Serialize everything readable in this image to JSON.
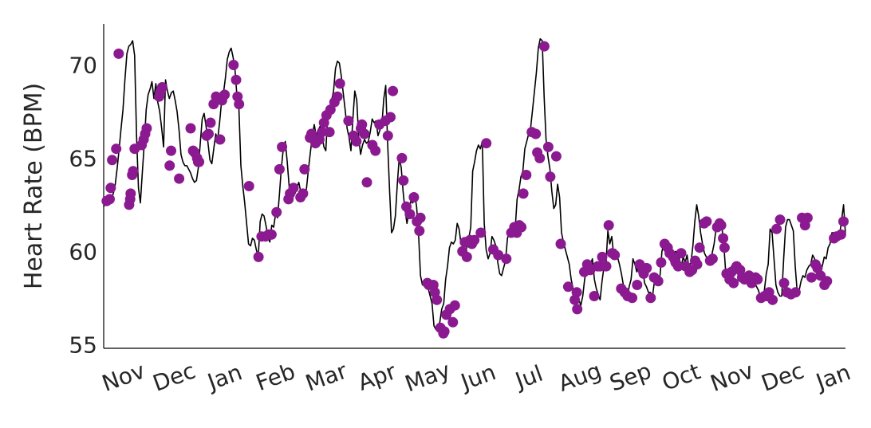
{
  "chart_data": {
    "type": "line",
    "title": "",
    "xlabel": "",
    "ylabel": "Heart Rate (BPM)",
    "ylim": [
      54.8,
      72.2
    ],
    "yticks": [
      55,
      60,
      65,
      70
    ],
    "xticks": [
      "Nov",
      "Dec",
      "Jan",
      "Feb",
      "Mar",
      "Apr",
      "May",
      "Jun",
      "Jul",
      "Aug",
      "Sep",
      "Oct",
      "Nov",
      "Dec",
      "Jan"
    ],
    "grid": false,
    "legend": "none",
    "colors": {
      "line": "#000000",
      "markers": "#8B1A91",
      "axis": "#000000",
      "text": "#262626"
    },
    "series": [
      {
        "type": "line",
        "values": [
          62.4,
          62.6,
          62.5,
          62.8,
          62.9,
          63.1,
          63.6,
          64.5,
          65.5,
          66.6,
          67.6,
          69.2,
          70.6,
          71.0,
          71.1,
          71.3,
          70.5,
          66.2,
          63.4,
          62.6,
          64.2,
          65.8,
          67.6,
          68.4,
          68.7,
          69.1,
          68.2,
          69.0,
          68.0,
          67.5,
          66.6,
          65.6,
          69.2,
          68.6,
          68.2,
          68.5,
          68.6,
          68.1,
          67.5,
          66.5,
          65.2,
          64.8,
          64.6,
          64.6,
          64.4,
          64.2,
          63.9,
          63.7,
          63.8,
          64.5,
          65.8,
          67.1,
          67.4,
          66.7,
          65.8,
          64.9,
          64.7,
          65.5,
          66.3,
          66.0,
          66.9,
          68.0,
          68.5,
          69.3,
          70.3,
          70.7,
          70.9,
          70.4,
          69.7,
          68.3,
          67.7,
          64.6,
          63.5,
          62.6,
          61.5,
          60.4,
          60.3,
          60.7,
          60.6,
          60.1,
          59.7,
          61.6,
          62.0,
          61.9,
          61.4,
          60.8,
          60.5,
          61.4,
          61.3,
          62.0,
          61.8,
          63.1,
          64.5,
          65.5,
          65.9,
          64.8,
          63.5,
          63.0,
          62.9,
          63.1,
          63.4,
          63.7,
          63.2,
          63.0,
          62.9,
          63.4,
          64.4,
          65.3,
          66.2,
          66.8,
          66.2,
          66.5,
          66.7,
          66.3,
          65.6,
          65.4,
          67.4,
          67.4,
          68.1,
          68.6,
          69.8,
          70.2,
          70.1,
          69.4,
          68.5,
          67.6,
          66.6,
          66.1,
          65.4,
          67.1,
          68.6,
          68.1,
          66.1,
          65.2,
          65.7,
          66.0,
          65.8,
          65.9,
          66.4,
          67.1,
          66.9,
          67.0,
          66.2,
          66.5,
          66.8,
          68.2,
          68.9,
          65.8,
          63.3,
          61.0,
          61.2,
          61.9,
          63.6,
          65.0,
          64.5,
          63.2,
          62.2,
          61.5,
          62.1,
          62.7,
          62.6,
          63.1,
          62.4,
          60.9,
          58.7,
          58.2,
          58.2,
          58.3,
          58.0,
          57.6,
          57.2,
          56.0,
          55.8,
          55.9,
          56.2,
          56.9,
          57.2,
          58.5,
          59.2,
          60.2,
          60.5,
          60.4,
          60.6,
          61.5,
          61.2,
          60.4,
          60.3,
          60.0,
          60.2,
          60.7,
          61.3,
          64.3,
          64.8,
          65.4,
          65.7,
          65.5,
          65.9,
          61.5,
          60.1,
          59.6,
          59.9,
          60.8,
          60.6,
          60.3,
          59.4,
          58.8,
          58.7,
          59.1,
          59.5,
          60.7,
          61.0,
          61.4,
          61.0,
          61.2,
          62.8,
          63.3,
          64.0,
          64.3,
          65.5,
          65.9,
          66.3,
          66.6,
          67.6,
          68.6,
          69.6,
          70.9,
          71.4,
          71.3,
          68.3,
          66.0,
          65.1,
          64.4,
          63.2,
          62.3,
          62.5,
          63.6,
          62.9,
          61.0,
          60.5,
          60.1,
          59.7,
          59.3,
          58.5,
          58.0,
          57.9,
          57.8,
          57.4,
          57.1,
          57.6,
          58.5,
          59.1,
          59.0,
          59.3,
          59.6,
          58.5,
          58.0,
          57.7,
          57.4,
          58.4,
          59.2,
          59.3,
          61.1,
          60.4,
          60.8,
          59.8,
          60.1,
          59.7,
          59.3,
          58.8,
          58.2,
          57.8,
          57.5,
          58.1,
          58.5,
          59.6,
          59.3,
          58.9,
          59.4,
          59.2,
          59.1,
          58.3,
          58.1,
          57.8,
          57.8,
          57.5,
          58.3,
          58.5,
          58.5,
          58.7,
          60.0,
          60.4,
          59.8,
          59.8,
          59.7,
          59.3,
          59.9,
          60.0,
          59.9,
          59.6,
          59.2,
          59.7,
          59.4,
          59.8,
          59.1,
          59.4,
          60.3,
          61.6,
          62.5,
          61.9,
          61.0,
          60.4,
          59.9,
          59.7,
          59.4,
          59.4,
          59.9,
          60.4,
          61.2,
          61.2,
          61.7,
          61.3,
          60.4,
          58.9,
          58.5,
          58.8,
          59.2,
          59.3,
          59.0,
          58.8,
          58.7,
          58.6,
          58.6,
          58.4,
          58.8,
          58.6,
          58.4,
          58.6,
          58.3,
          58.1,
          57.9,
          57.5,
          57.6,
          57.9,
          58.8,
          59.3,
          61.2,
          61.0,
          59.6,
          58.2,
          57.8,
          57.6,
          57.6,
          59.6,
          61.3,
          61.7,
          61.7,
          61.4,
          61.1,
          59.2,
          57.8,
          57.9,
          58.4,
          58.7,
          58.6,
          59.0,
          59.2,
          59.3,
          59.8,
          59.6,
          59.2,
          59.0,
          58.8,
          59.2,
          59.7,
          59.6,
          60.2,
          60.4,
          61.0,
          61.0,
          60.7,
          60.6,
          60.9,
          61.7,
          62.5,
          60.9
        ]
      },
      {
        "type": "scatter",
        "points": [
          [
            0.6,
            62.7
          ],
          [
            1.2,
            62.8
          ],
          [
            1.4,
            63.4
          ],
          [
            1.7,
            64.9
          ],
          [
            2.5,
            65.5
          ],
          [
            3.0,
            70.6
          ],
          [
            5.1,
            62.5
          ],
          [
            5.3,
            62.8
          ],
          [
            5.4,
            63.1
          ],
          [
            5.7,
            64.1
          ],
          [
            5.9,
            64.3
          ],
          [
            6.2,
            65.5
          ],
          [
            7.6,
            65.7
          ],
          [
            8.0,
            66.0
          ],
          [
            8.3,
            66.3
          ],
          [
            8.6,
            66.6
          ],
          [
            11.1,
            68.3
          ],
          [
            11.4,
            68.6
          ],
          [
            11.7,
            68.8
          ],
          [
            13.2,
            64.6
          ],
          [
            13.5,
            65.4
          ],
          [
            15.1,
            63.9
          ],
          [
            17.4,
            66.6
          ],
          [
            17.9,
            65.4
          ],
          [
            18.2,
            65.3
          ],
          [
            18.7,
            65.0
          ],
          [
            18.9,
            64.8
          ],
          [
            19.1,
            64.8
          ],
          [
            20.6,
            66.2
          ],
          [
            21.0,
            66.3
          ],
          [
            21.4,
            66.9
          ],
          [
            22.0,
            67.9
          ],
          [
            22.5,
            68.3
          ],
          [
            23.3,
            66.0
          ],
          [
            23.7,
            68.1
          ],
          [
            24.2,
            68.4
          ],
          [
            26.0,
            70.0
          ],
          [
            26.5,
            69.2
          ],
          [
            26.8,
            68.3
          ],
          [
            27.1,
            67.9
          ],
          [
            29.1,
            63.5
          ],
          [
            31.0,
            59.7
          ],
          [
            31.6,
            60.8
          ],
          [
            32.4,
            60.8
          ],
          [
            33.0,
            60.9
          ],
          [
            33.6,
            60.9
          ],
          [
            34.6,
            62.1
          ],
          [
            35.2,
            64.4
          ],
          [
            35.7,
            65.6
          ],
          [
            37.0,
            62.8
          ],
          [
            37.3,
            63.1
          ],
          [
            38.0,
            63.4
          ],
          [
            39.4,
            62.9
          ],
          [
            39.9,
            63.1
          ],
          [
            40.2,
            64.4
          ],
          [
            41.3,
            66.1
          ],
          [
            41.6,
            66.3
          ],
          [
            42.4,
            65.8
          ],
          [
            43.2,
            66.0
          ],
          [
            43.7,
            66.4
          ],
          [
            44.1,
            66.9
          ],
          [
            44.6,
            67.3
          ],
          [
            45.2,
            66.4
          ],
          [
            45.4,
            67.6
          ],
          [
            46.2,
            68.0
          ],
          [
            46.8,
            68.3
          ],
          [
            47.3,
            69.0
          ],
          [
            49.0,
            67.0
          ],
          [
            50.0,
            66.2
          ],
          [
            50.6,
            65.9
          ],
          [
            51.5,
            66.6
          ],
          [
            51.7,
            66.8
          ],
          [
            52.2,
            66.3
          ],
          [
            52.7,
            63.7
          ],
          [
            53.8,
            65.7
          ],
          [
            54.4,
            65.4
          ],
          [
            55.2,
            66.8
          ],
          [
            56.4,
            67.0
          ],
          [
            56.9,
            66.2
          ],
          [
            57.4,
            67.2
          ],
          [
            57.9,
            68.6
          ],
          [
            59.7,
            65.0
          ],
          [
            60.0,
            63.8
          ],
          [
            60.6,
            62.4
          ],
          [
            61.3,
            62.0
          ],
          [
            62.1,
            62.9
          ],
          [
            62.7,
            61.6
          ],
          [
            63.2,
            61.1
          ],
          [
            63.4,
            61.8
          ],
          [
            64.8,
            58.3
          ],
          [
            65.1,
            58.2
          ],
          [
            66.0,
            58.2
          ],
          [
            66.3,
            57.8
          ],
          [
            66.7,
            57.4
          ],
          [
            67.4,
            55.9
          ],
          [
            68.0,
            55.6
          ],
          [
            68.2,
            55.7
          ],
          [
            68.6,
            56.6
          ],
          [
            69.3,
            56.9
          ],
          [
            69.9,
            56.2
          ],
          [
            70.3,
            57.1
          ],
          [
            71.8,
            60.0
          ],
          [
            72.3,
            60.5
          ],
          [
            72.7,
            59.7
          ],
          [
            73.3,
            60.6
          ],
          [
            73.7,
            60.4
          ],
          [
            74.2,
            60.6
          ],
          [
            75.5,
            61.0
          ],
          [
            76.6,
            65.8
          ],
          [
            78.0,
            60.1
          ],
          [
            79.0,
            59.8
          ],
          [
            80.6,
            59.6
          ],
          [
            81.6,
            61.0
          ],
          [
            82.2,
            61.3
          ],
          [
            82.7,
            61.0
          ],
          [
            83.2,
            61.4
          ],
          [
            83.6,
            61.3
          ],
          [
            84.0,
            63.1
          ],
          [
            84.6,
            64.1
          ],
          [
            85.7,
            66.4
          ],
          [
            86.5,
            66.3
          ],
          [
            86.8,
            65.3
          ],
          [
            87.3,
            65.0
          ],
          [
            88.2,
            71.0
          ],
          [
            89.0,
            65.6
          ],
          [
            89.4,
            64.0
          ],
          [
            90.6,
            65.1
          ],
          [
            91.5,
            60.4
          ],
          [
            93.0,
            58.1
          ],
          [
            94.3,
            57.4
          ],
          [
            94.7,
            57.8
          ],
          [
            94.8,
            56.9
          ],
          [
            96.2,
            58.9
          ],
          [
            96.8,
            59.3
          ],
          [
            97.4,
            59.0
          ],
          [
            98.2,
            57.6
          ],
          [
            98.9,
            59.2
          ],
          [
            99.4,
            59.2
          ],
          [
            99.8,
            59.7
          ],
          [
            100.6,
            59.2
          ],
          [
            101.1,
            61.4
          ],
          [
            101.8,
            59.9
          ],
          [
            102.3,
            59.8
          ],
          [
            103.6,
            58.0
          ],
          [
            104.3,
            57.8
          ],
          [
            104.9,
            57.6
          ],
          [
            105.8,
            57.5
          ],
          [
            106.8,
            58.2
          ],
          [
            107.3,
            59.3
          ],
          [
            107.9,
            59.0
          ],
          [
            108.1,
            58.8
          ],
          [
            108.7,
            59.1
          ],
          [
            109.5,
            57.5
          ],
          [
            110.2,
            58.6
          ],
          [
            111.0,
            58.4
          ],
          [
            111.6,
            59.4
          ],
          [
            112.3,
            60.4
          ],
          [
            112.9,
            60.2
          ],
          [
            113.3,
            59.9
          ],
          [
            114.0,
            59.7
          ],
          [
            114.5,
            59.4
          ],
          [
            115.0,
            59.2
          ],
          [
            115.6,
            59.9
          ],
          [
            116.5,
            59.2
          ],
          [
            117.3,
            58.9
          ],
          [
            117.8,
            59.0
          ],
          [
            118.4,
            59.5
          ],
          [
            118.8,
            59.3
          ],
          [
            119.3,
            60.2
          ],
          [
            120.2,
            61.5
          ],
          [
            120.7,
            61.6
          ],
          [
            121.4,
            59.5
          ],
          [
            121.9,
            59.6
          ],
          [
            122.8,
            61.3
          ],
          [
            123.3,
            61.5
          ],
          [
            123.6,
            61.4
          ],
          [
            124.0,
            60.7
          ],
          [
            124.3,
            60.2
          ],
          [
            124.7,
            58.8
          ],
          [
            125.3,
            58.5
          ],
          [
            125.7,
            58.9
          ],
          [
            126.1,
            58.3
          ],
          [
            126.7,
            59.2
          ],
          [
            127.4,
            59.0
          ],
          [
            127.8,
            58.6
          ],
          [
            128.3,
            58.5
          ],
          [
            128.7,
            58.6
          ],
          [
            129.2,
            58.7
          ],
          [
            129.7,
            58.3
          ],
          [
            130.5,
            58.6
          ],
          [
            130.9,
            58.5
          ],
          [
            131.6,
            57.5
          ],
          [
            132.3,
            57.6
          ],
          [
            132.8,
            57.6
          ],
          [
            133.2,
            57.8
          ],
          [
            133.9,
            57.4
          ],
          [
            134.7,
            61.2
          ],
          [
            135.4,
            61.7
          ],
          [
            136.2,
            58.3
          ],
          [
            136.8,
            57.8
          ],
          [
            137.6,
            57.7
          ],
          [
            138.5,
            57.8
          ],
          [
            139.8,
            61.8
          ],
          [
            140.4,
            61.4
          ],
          [
            140.9,
            61.8
          ],
          [
            141.7,
            58.6
          ],
          [
            142.5,
            59.3
          ],
          [
            142.9,
            59.1
          ],
          [
            143.5,
            58.7
          ],
          [
            144.3,
            58.2
          ],
          [
            144.8,
            58.4
          ],
          [
            146.2,
            60.7
          ],
          [
            146.7,
            60.8
          ],
          [
            147.6,
            60.9
          ],
          [
            148.1,
            61.6
          ]
        ],
        "xmax": 148.5
      }
    ]
  }
}
